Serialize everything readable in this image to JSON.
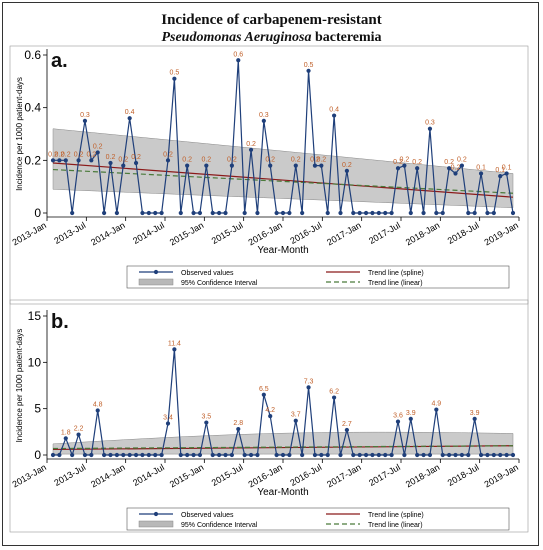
{
  "title_line1": "Incidence of carbapenem-resistant",
  "title_line2_italic": "Pseudomonas Aeruginosa",
  "title_line2_rest": " bacteremia",
  "colors": {
    "observed": "#1f3f7a",
    "spline": "#8b1a1a",
    "linear": "#4a7a3a",
    "ci_fill": "#b8b8b8",
    "label": "#c0602a",
    "bg": "#ffffff"
  },
  "chart_data": [
    {
      "panel": "a.",
      "type": "line",
      "xlabel": "Year-Month",
      "ylabel": "Incidence per 1000 patient-days",
      "ylim": [
        0,
        0.6
      ],
      "yticks": [
        "0",
        "0.2",
        "0.4",
        "0.6"
      ],
      "xticks": [
        "2013-Jan",
        "2013-Jul",
        "2014-Jan",
        "2014-Jul",
        "2015-Jan",
        "2015-Jul",
        "2016-Jan",
        "2016-Jul",
        "2017-Jan",
        "2017-Jul",
        "2018-Jan",
        "2018-Jul",
        "2019-Jan"
      ],
      "values": [
        0.2,
        0.2,
        0.2,
        0,
        0.2,
        0.35,
        0.2,
        0.23,
        0,
        0.19,
        0,
        0.18,
        0.36,
        0.19,
        0,
        0,
        0,
        0,
        0.2,
        0.51,
        0,
        0.18,
        0,
        0,
        0.18,
        0,
        0,
        0,
        0.18,
        0.58,
        0,
        0.24,
        0,
        0.35,
        0.18,
        0,
        0,
        0,
        0.18,
        0,
        0.54,
        0.18,
        0.18,
        0,
        0.37,
        0,
        0.16,
        0,
        0,
        0,
        0,
        0,
        0,
        0,
        0.17,
        0.18,
        0,
        0.17,
        0,
        0.32,
        0,
        0,
        0.17,
        0.15,
        0.18,
        0,
        0,
        0.15,
        0,
        0,
        0.14,
        0.15,
        0
      ],
      "point_labels": [
        {
          "i": 0,
          "text": "0.2"
        },
        {
          "i": 1,
          "text": "0.2"
        },
        {
          "i": 2,
          "text": "0.2"
        },
        {
          "i": 4,
          "text": "0.2"
        },
        {
          "i": 5,
          "text": "0.3"
        },
        {
          "i": 6,
          "text": "0.2"
        },
        {
          "i": 7,
          "text": "0.2"
        },
        {
          "i": 9,
          "text": "0.2"
        },
        {
          "i": 11,
          "text": "0.2"
        },
        {
          "i": 12,
          "text": "0.4"
        },
        {
          "i": 13,
          "text": "0.2"
        },
        {
          "i": 18,
          "text": "0.2"
        },
        {
          "i": 19,
          "text": "0.5"
        },
        {
          "i": 21,
          "text": "0.2"
        },
        {
          "i": 24,
          "text": "0.2"
        },
        {
          "i": 28,
          "text": "0.2"
        },
        {
          "i": 29,
          "text": "0.6"
        },
        {
          "i": 31,
          "text": "0.2"
        },
        {
          "i": 33,
          "text": "0.3"
        },
        {
          "i": 34,
          "text": "0.2"
        },
        {
          "i": 38,
          "text": "0.2"
        },
        {
          "i": 40,
          "text": "0.5"
        },
        {
          "i": 41,
          "text": "0.2"
        },
        {
          "i": 42,
          "text": "0.2"
        },
        {
          "i": 44,
          "text": "0.4"
        },
        {
          "i": 46,
          "text": "0.2"
        },
        {
          "i": 54,
          "text": "0.2"
        },
        {
          "i": 55,
          "text": "0.2"
        },
        {
          "i": 57,
          "text": "0.2"
        },
        {
          "i": 59,
          "text": "0.3"
        },
        {
          "i": 62,
          "text": "0.2"
        },
        {
          "i": 63,
          "text": "0.2"
        },
        {
          "i": 64,
          "text": "0.2"
        },
        {
          "i": 67,
          "text": "0.1"
        },
        {
          "i": 70,
          "text": "0.1"
        },
        {
          "i": 71,
          "text": "0.1"
        }
      ],
      "ci_upper": [
        0.32,
        0.15
      ],
      "ci_lower": [
        0.09,
        0.02
      ],
      "spline": [
        0.19,
        0.06
      ],
      "linear": [
        0.165,
        0.075
      ]
    },
    {
      "panel": "b.",
      "type": "line",
      "xlabel": "Year-Month",
      "ylabel": "Incidence per 1000 patient-days",
      "ylim": [
        0,
        15
      ],
      "yticks": [
        "0",
        "5",
        "10",
        "15"
      ],
      "xticks": [
        "2013-Jan",
        "2013-Jul",
        "2014-Jan",
        "2014-Jul",
        "2015-Jan",
        "2015-Jul",
        "2016-Jan",
        "2016-Jul",
        "2017-Jan",
        "2017-Jul",
        "2018-Jan",
        "2018-Jul",
        "2019-Jan"
      ],
      "values": [
        0,
        0,
        1.8,
        0,
        2.2,
        0,
        0,
        4.8,
        0,
        0,
        0,
        0,
        0,
        0,
        0,
        0,
        0,
        0,
        3.4,
        11.4,
        0,
        0,
        0,
        0,
        3.5,
        0,
        0,
        0,
        0,
        2.8,
        0,
        0,
        0,
        6.5,
        4.2,
        0,
        0,
        0,
        3.7,
        0,
        7.3,
        0,
        0,
        0,
        6.2,
        0,
        2.7,
        0,
        0,
        0,
        0,
        0,
        0,
        0,
        3.6,
        0,
        3.9,
        0,
        0,
        0,
        4.9,
        0,
        0,
        0,
        0,
        0,
        3.9,
        0,
        0,
        0,
        0,
        0,
        0
      ],
      "point_labels": [
        {
          "i": 2,
          "text": "1.8"
        },
        {
          "i": 4,
          "text": "2.2"
        },
        {
          "i": 7,
          "text": "4.8"
        },
        {
          "i": 18,
          "text": "3.4"
        },
        {
          "i": 19,
          "text": "11.4"
        },
        {
          "i": 24,
          "text": "3.5"
        },
        {
          "i": 29,
          "text": "2.8"
        },
        {
          "i": 33,
          "text": "6.5"
        },
        {
          "i": 34,
          "text": "4.2"
        },
        {
          "i": 38,
          "text": "3.7"
        },
        {
          "i": 40,
          "text": "7.3"
        },
        {
          "i": 44,
          "text": "6.2"
        },
        {
          "i": 46,
          "text": "2.7"
        },
        {
          "i": 54,
          "text": "3.6"
        },
        {
          "i": 56,
          "text": "3.9"
        },
        {
          "i": 60,
          "text": "4.9"
        },
        {
          "i": 66,
          "text": "3.9"
        }
      ],
      "ci_upper": [
        1.2,
        2.3
      ],
      "ci_lower": [
        0.1,
        0.1
      ],
      "spline": [
        0.6,
        1.0
      ],
      "linear": [
        0.7,
        1.0
      ]
    }
  ],
  "legend": {
    "observed": "Observed values",
    "spline": "Trend line (spline)",
    "ci": "95% Confidence Interval",
    "linear": "Trend line (linear)"
  }
}
